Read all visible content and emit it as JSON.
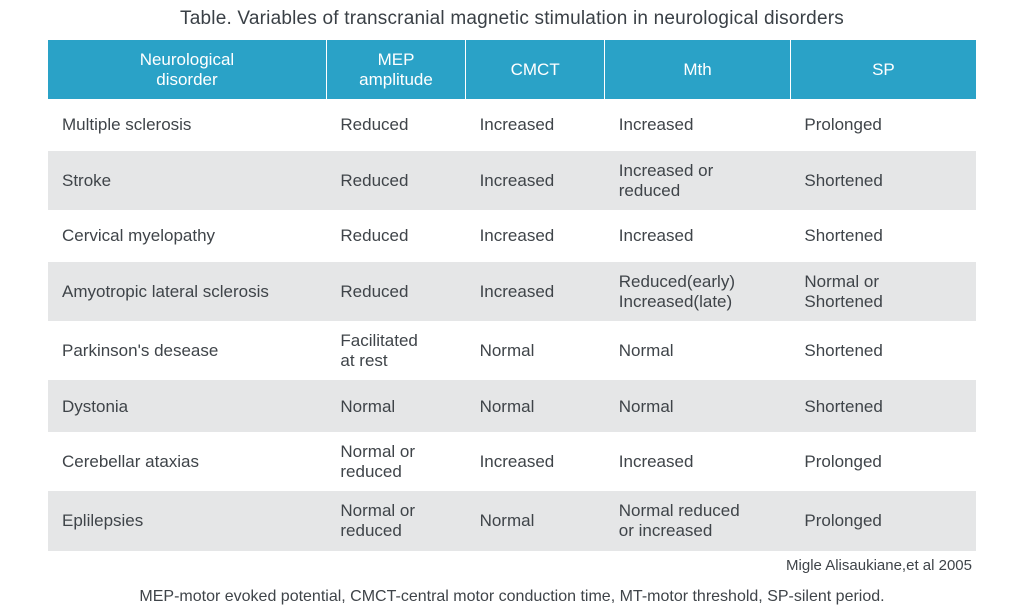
{
  "title": "Table. Variables of transcranial magnetic stimulation in neurological disorders",
  "table": {
    "type": "table",
    "header_bg": "#2aa2c7",
    "header_fg": "#ffffff",
    "row_bg_odd": "#ffffff",
    "row_bg_even": "#e5e6e7",
    "header_border": "#ffffff",
    "text_color": "#3f4449",
    "col_widths_pct": [
      30,
      15,
      15,
      20,
      20
    ],
    "header_fontsize": 17,
    "cell_fontsize": 17,
    "title_fontsize": 19,
    "columns": [
      "Neurological\ndisorder",
      "MEP\namplitude",
      "CMCT",
      "Mth",
      "SP"
    ],
    "rows": [
      [
        "Multiple sclerosis",
        "Reduced",
        "Increased",
        "Increased",
        "Prolonged"
      ],
      [
        "Stroke",
        "Reduced",
        "Increased",
        "Increased or\nreduced",
        "Shortened"
      ],
      [
        "Cervical myelopathy",
        "Reduced",
        "Increased",
        "Increased",
        "Shortened"
      ],
      [
        "Amyotropic lateral sclerosis",
        "Reduced",
        "Increased",
        "Reduced(early)\nIncreased(late)",
        "Normal or\nShortened"
      ],
      [
        "Parkinson's desease",
        "Facilitated\nat rest",
        "Normal",
        "Normal",
        "Shortened"
      ],
      [
        "Dystonia",
        "Normal",
        "Normal",
        "Normal",
        "Shortened"
      ],
      [
        "Cerebellar ataxias",
        "Normal or\nreduced",
        "Increased",
        "Increased",
        "Prolonged"
      ],
      [
        "Eplilepsies",
        "Normal or\nreduced",
        "Normal",
        "Normal  reduced\nor increased",
        "Prolonged"
      ]
    ]
  },
  "citation": "Migle Alisaukiane,et al 2005",
  "footnote": "MEP-motor evoked potential, CMCT-central motor conduction time, MT-motor threshold, SP-silent period."
}
